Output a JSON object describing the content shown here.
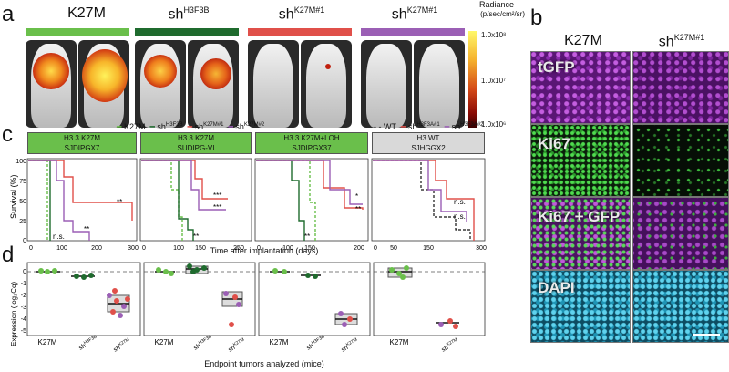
{
  "panels": {
    "a": "a",
    "b": "b",
    "c": "c",
    "d": "d"
  },
  "panel_a": {
    "groups": [
      {
        "label": "K27M",
        "color": "#6abf4b"
      },
      {
        "label": "sh",
        "sup": "H3F3B",
        "color": "#1f6b2e"
      },
      {
        "label": "sh",
        "sup": "K27M#1",
        "color": "#e0504a"
      },
      {
        "label": "sh",
        "sup": "K27M#1",
        "color": "#9b5fb5"
      }
    ],
    "colorbar": {
      "title": "Radiance",
      "unit": "(p/sec/cm²/sr)",
      "ticks": [
        "1.0x10⁸",
        "1.0x10⁷",
        "1.0x10⁶"
      ]
    }
  },
  "panel_b": {
    "columns": [
      "K27M",
      "sh"
    ],
    "column2_sup": "K27M#1",
    "rows": [
      "tGFP",
      "Ki67",
      "Ki67 + GFP",
      "DAPI"
    ]
  },
  "panel_c": {
    "legend_left": [
      "K27M",
      "sh",
      "sh",
      "sh"
    ],
    "legend_left_sup": [
      "",
      "H3F3B",
      "K27M#1",
      "K27M#2"
    ],
    "legend_right": [
      "WT",
      "sh",
      "sh"
    ],
    "legend_right_sup": [
      "",
      "H3F3A#1",
      "H3F3A#2"
    ],
    "subpanels": [
      {
        "line1": "H3.3 K27M",
        "line2": "SJDIPGX7",
        "color": "#6abf4b"
      },
      {
        "line1": "H3.3 K27M",
        "line2": "SUDIPG-VI",
        "color": "#6abf4b"
      },
      {
        "line1": "H3.3 K27M+LOH",
        "line2": "SJDIPGX37",
        "color": "#6abf4b"
      },
      {
        "line1": "H3 WT",
        "line2": "SJHGGX2",
        "color": "#d9d9d9"
      }
    ],
    "ylabel": "Survival (%)",
    "xlabel": "Time after implantation (days)",
    "yticks": [
      "0",
      "25",
      "50",
      "75",
      "100"
    ],
    "xticks": [
      "0",
      "50",
      "100",
      "150",
      "200",
      "250",
      "300"
    ],
    "annotations": {
      "p1": [
        "**",
        "**",
        "n.s."
      ],
      "p2": [
        "***",
        "***",
        "**"
      ],
      "p3": [
        "*",
        "**",
        "**"
      ],
      "p4": [
        "n.s.",
        "n.s."
      ]
    }
  },
  "panel_d": {
    "ylabel": "Expression (log₂Cq)",
    "xlabel": "Endpoint tumors analyzed (mice)",
    "yticks": [
      "1",
      "0",
      "-1",
      "-2",
      "-3",
      "-4",
      "-5"
    ],
    "groups": [
      [
        "K27M",
        "sh",
        "sh"
      ],
      [
        "K27M",
        "sh",
        "sh"
      ],
      [
        "K27M",
        "sh",
        "sh"
      ],
      [
        "K27M",
        "sh"
      ]
    ],
    "group_sups": [
      [
        "",
        "H3F3B",
        "K27M"
      ],
      [
        "",
        "H3F3B",
        "K27M"
      ],
      [
        "",
        "H3F3B",
        "K27M"
      ],
      [
        "",
        "K27M"
      ]
    ]
  },
  "colors": {
    "k27m": "#6abf4b",
    "sh_h3f3b": "#1f6b2e",
    "sh_k27m1": "#e0504a",
    "sh_k27m2": "#9b5fb5",
    "wt": "#111111",
    "tgfp": "#a23bc0",
    "ki67": "#3fbf3f",
    "dapi": "#2ab7d6"
  }
}
